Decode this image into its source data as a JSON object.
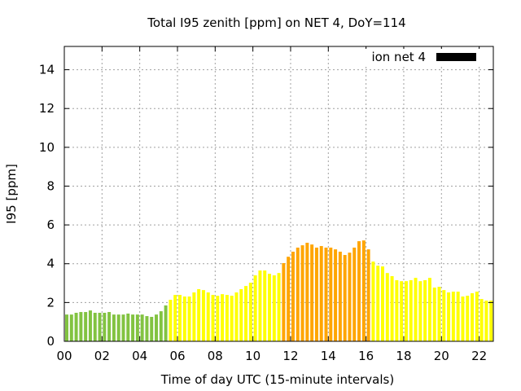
{
  "chart_data": {
    "type": "bar",
    "title": "Total I95 zenith [ppm] on NET 4, DoY=114",
    "xlabel": "Time of day UTC (15-minute intervals)",
    "ylabel": "I95 [ppm]",
    "xlim": [
      0,
      22.75
    ],
    "ylim": [
      0,
      15.2
    ],
    "x_unit": "hours UTC",
    "bar_interval_hours": 0.25,
    "x_ticks": [
      0,
      2,
      4,
      6,
      8,
      10,
      12,
      14,
      16,
      18,
      20,
      22
    ],
    "x_tick_labels": [
      "00",
      "02",
      "04",
      "06",
      "08",
      "10",
      "12",
      "14",
      "16",
      "18",
      "20",
      "22"
    ],
    "y_ticks": [
      0,
      2,
      4,
      6,
      8,
      10,
      12,
      14
    ],
    "y_tick_labels": [
      "0",
      "2",
      "4",
      "6",
      "8",
      "10",
      "12",
      "14"
    ],
    "grid": true,
    "legend": {
      "position": "top-right",
      "label": "ion net 4",
      "color": "#000000"
    },
    "palette": {
      "g": "#82c341",
      "y": "#ffff00",
      "o": "#ffa500"
    },
    "series": [
      {
        "name": "ion net 4",
        "values": [
          1.38,
          1.38,
          1.47,
          1.51,
          1.51,
          1.59,
          1.47,
          1.47,
          1.47,
          1.51,
          1.38,
          1.38,
          1.38,
          1.43,
          1.38,
          1.38,
          1.38,
          1.3,
          1.26,
          1.38,
          1.55,
          1.85,
          2.14,
          2.39,
          2.39,
          2.31,
          2.31,
          2.52,
          2.69,
          2.64,
          2.52,
          2.39,
          2.35,
          2.43,
          2.39,
          2.35,
          2.52,
          2.69,
          2.85,
          3.02,
          3.4,
          3.65,
          3.65,
          3.48,
          3.4,
          3.52,
          4.03,
          4.36,
          4.62,
          4.83,
          4.95,
          5.08,
          4.99,
          4.83,
          4.91,
          4.83,
          4.83,
          4.74,
          4.62,
          4.45,
          4.57,
          4.83,
          5.16,
          5.2,
          4.74,
          4.11,
          3.9,
          3.86,
          3.52,
          3.36,
          3.15,
          3.1,
          3.1,
          3.15,
          3.27,
          3.1,
          3.15,
          3.27,
          2.77,
          2.81,
          2.64,
          2.52,
          2.56,
          2.56,
          2.31,
          2.35,
          2.48,
          2.56,
          2.18,
          2.1,
          2.1,
          1.93
        ],
        "color_keys": "ggggggggggggggggggggggyyyyyyyyyyyyyyyyyyyyyyyyoooooooooooooooooooyyyyyyyyyyyyyyyyyyyyyyyyyyg"
      }
    ]
  }
}
